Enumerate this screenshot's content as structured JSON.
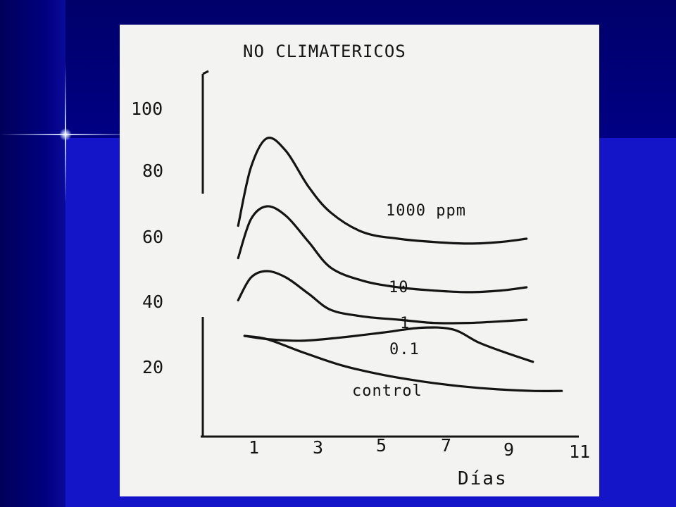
{
  "colors": {
    "slide_background": "#1f1fd6",
    "slide_dark": "#000080",
    "paper": "#f3f3f1",
    "ink": "#141414"
  },
  "chart_data": {
    "type": "line",
    "title": "NO CLIMATERICOS",
    "xlabel": "Días",
    "ylabel": "",
    "x_ticks": [
      1,
      3,
      5,
      7,
      9,
      11
    ],
    "y_ticks": [
      20,
      40,
      60,
      80,
      100
    ],
    "xlim": [
      0.2,
      11
    ],
    "ylim": [
      6,
      110
    ],
    "grid": false,
    "legend": "labels beside curves",
    "series": [
      {
        "name": "1000 ppm",
        "x": [
          0.3,
          0.7,
          1.2,
          1.8,
          2.5,
          3.2,
          4.2,
          5.3,
          6.4,
          7.5,
          8.5,
          9.3
        ],
        "y": [
          64,
          82,
          91,
          87,
          76,
          68,
          62,
          60,
          59,
          58.5,
          59,
          60
        ]
      },
      {
        "name": "10",
        "x": [
          0.3,
          0.7,
          1.2,
          1.8,
          2.5,
          3.2,
          4.2,
          5.3,
          6.4,
          7.5,
          8.5,
          9.3
        ],
        "y": [
          54,
          66,
          70,
          67,
          59,
          51,
          47,
          45,
          44,
          43.5,
          44,
          45
        ]
      },
      {
        "name": "1",
        "x": [
          0.3,
          0.7,
          1.2,
          1.8,
          2.5,
          3.2,
          4.2,
          5.3,
          6.4,
          7.5,
          8.5,
          9.3
        ],
        "y": [
          41,
          48,
          50,
          48,
          43,
          38,
          36,
          35,
          34,
          34,
          34.5,
          35
        ]
      },
      {
        "name": "0.1",
        "x": [
          0.5,
          1.2,
          2.3,
          3.5,
          4.8,
          6.0,
          7.0,
          7.8,
          8.6,
          9.5
        ],
        "y": [
          30,
          29,
          28.5,
          29.5,
          31,
          32.5,
          32,
          28,
          25,
          22
        ]
      },
      {
        "name": "control",
        "x": [
          0.5,
          1.2,
          2.3,
          3.5,
          4.8,
          6.0,
          7.2,
          8.4,
          9.5,
          10.4
        ],
        "y": [
          30,
          29,
          25,
          21,
          18,
          16,
          14.5,
          13.5,
          13,
          13
        ]
      }
    ]
  }
}
